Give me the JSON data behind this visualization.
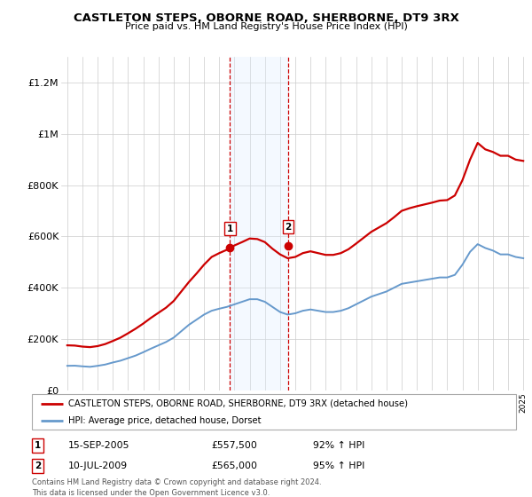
{
  "title": "CASTLETON STEPS, OBORNE ROAD, SHERBORNE, DT9 3RX",
  "subtitle": "Price paid vs. HM Land Registry's House Price Index (HPI)",
  "legend_line1": "CASTLETON STEPS, OBORNE ROAD, SHERBORNE, DT9 3RX (detached house)",
  "legend_line2": "HPI: Average price, detached house, Dorset",
  "transaction1_date": "15-SEP-2005",
  "transaction1_price": "£557,500",
  "transaction1_hpi": "92% ↑ HPI",
  "transaction2_date": "10-JUL-2009",
  "transaction2_price": "£565,000",
  "transaction2_hpi": "95% ↑ HPI",
  "footer": "Contains HM Land Registry data © Crown copyright and database right 2024.\nThis data is licensed under the Open Government Licence v3.0.",
  "red_color": "#cc0000",
  "blue_color": "#6699cc",
  "shade_color": "#ddeeff",
  "ylim": [
    0,
    1300000
  ],
  "yticks": [
    0,
    200000,
    400000,
    600000,
    800000,
    1000000,
    1200000
  ],
  "ytick_labels": [
    "£0",
    "£200K",
    "£400K",
    "£600K",
    "£800K",
    "£1M",
    "£1.2M"
  ],
  "hpi_years": [
    1995,
    1995.5,
    1996,
    1996.5,
    1997,
    1997.5,
    1998,
    1998.5,
    1999,
    1999.5,
    2000,
    2000.5,
    2001,
    2001.5,
    2002,
    2002.5,
    2003,
    2003.5,
    2004,
    2004.5,
    2005,
    2005.5,
    2006,
    2006.5,
    2007,
    2007.5,
    2008,
    2008.5,
    2009,
    2009.5,
    2010,
    2010.5,
    2011,
    2011.5,
    2012,
    2012.5,
    2013,
    2013.5,
    2014,
    2014.5,
    2015,
    2015.5,
    2016,
    2016.5,
    2017,
    2017.5,
    2018,
    2018.5,
    2019,
    2019.5,
    2020,
    2020.5,
    2021,
    2021.5,
    2022,
    2022.5,
    2023,
    2023.5,
    2024,
    2024.5,
    2025
  ],
  "hpi_values": [
    95000,
    95500,
    93000,
    91000,
    95000,
    100000,
    108000,
    115000,
    125000,
    135000,
    148000,
    162000,
    175000,
    188000,
    205000,
    230000,
    255000,
    275000,
    295000,
    310000,
    318000,
    325000,
    335000,
    345000,
    355000,
    355000,
    345000,
    325000,
    305000,
    295000,
    300000,
    310000,
    315000,
    310000,
    305000,
    305000,
    310000,
    320000,
    335000,
    350000,
    365000,
    375000,
    385000,
    400000,
    415000,
    420000,
    425000,
    430000,
    435000,
    440000,
    440000,
    450000,
    490000,
    540000,
    570000,
    555000,
    545000,
    530000,
    530000,
    520000,
    515000
  ],
  "red_years": [
    1995,
    1995.5,
    1996,
    1996.5,
    1997,
    1997.5,
    1998,
    1998.5,
    1999,
    1999.5,
    2000,
    2000.5,
    2001,
    2001.5,
    2002,
    2002.5,
    2003,
    2003.5,
    2004,
    2004.5,
    2005,
    2005.5,
    2006,
    2006.5,
    2007,
    2007.5,
    2008,
    2008.5,
    2009,
    2009.5,
    2010,
    2010.5,
    2011,
    2011.5,
    2012,
    2012.5,
    2013,
    2013.5,
    2014,
    2014.5,
    2015,
    2015.5,
    2016,
    2016.5,
    2017,
    2017.5,
    2018,
    2018.5,
    2019,
    2019.5,
    2020,
    2020.5,
    2021,
    2021.5,
    2022,
    2022.5,
    2023,
    2023.5,
    2024,
    2024.5,
    2025
  ],
  "red_values": [
    175000,
    174000,
    170000,
    168000,
    172000,
    180000,
    192000,
    205000,
    222000,
    240000,
    260000,
    282000,
    302000,
    322000,
    348000,
    385000,
    422000,
    455000,
    490000,
    520000,
    535000,
    548000,
    565000,
    578000,
    592000,
    590000,
    578000,
    552000,
    530000,
    515000,
    520000,
    535000,
    542000,
    535000,
    528000,
    528000,
    535000,
    550000,
    572000,
    595000,
    618000,
    635000,
    652000,
    675000,
    700000,
    710000,
    718000,
    725000,
    732000,
    740000,
    742000,
    760000,
    820000,
    900000,
    965000,
    940000,
    930000,
    915000,
    915000,
    900000,
    895000
  ],
  "transaction1_x": 2005.71,
  "transaction1_y": 557500,
  "transaction2_x": 2009.52,
  "transaction2_y": 565000,
  "shade_x1": 2005.71,
  "shade_x2": 2009.52,
  "xlim_left": 1994.6,
  "xlim_right": 2025.4
}
